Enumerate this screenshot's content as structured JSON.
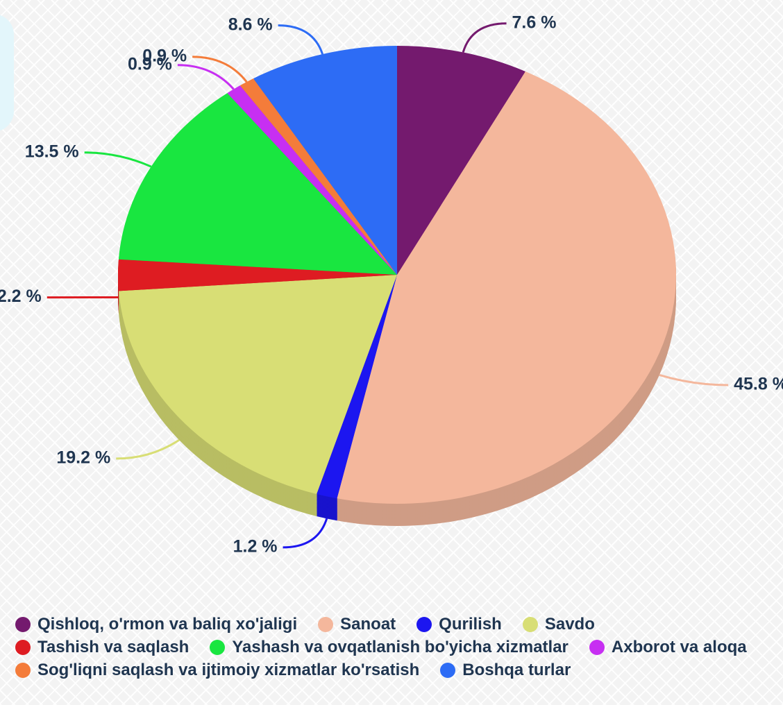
{
  "chart_data": {
    "type": "pie",
    "categories": [
      "Qishloq, o'rmon va baliq xo'jaligi",
      "Sanoat",
      "Qurilish",
      "Savdo",
      "Tashish va saqlash",
      "Yashash va ovqatlanish bo'yicha xizmatlar",
      "Axborot va aloqa",
      "Sog'liqni saqlash va ijtimoiy xizmatlar ko'rsatish",
      "Boshqa turlar"
    ],
    "values": [
      7.6,
      45.8,
      1.2,
      19.2,
      2.2,
      13.5,
      0.9,
      0.9,
      8.6
    ],
    "value_labels": [
      "7.6 %",
      "45.8 %",
      "1.2 %",
      "19.2 %",
      "2.2 %",
      "13.5 %",
      "0.9 %",
      "0.9 %",
      "8.6 %"
    ],
    "colors": [
      "#741a6e",
      "#f4b79c",
      "#1c16f0",
      "#d8de75",
      "#de1c22",
      "#19e640",
      "#c72ff2",
      "#f47c3a",
      "#2d6cf5"
    ],
    "legend": "bottom"
  }
}
